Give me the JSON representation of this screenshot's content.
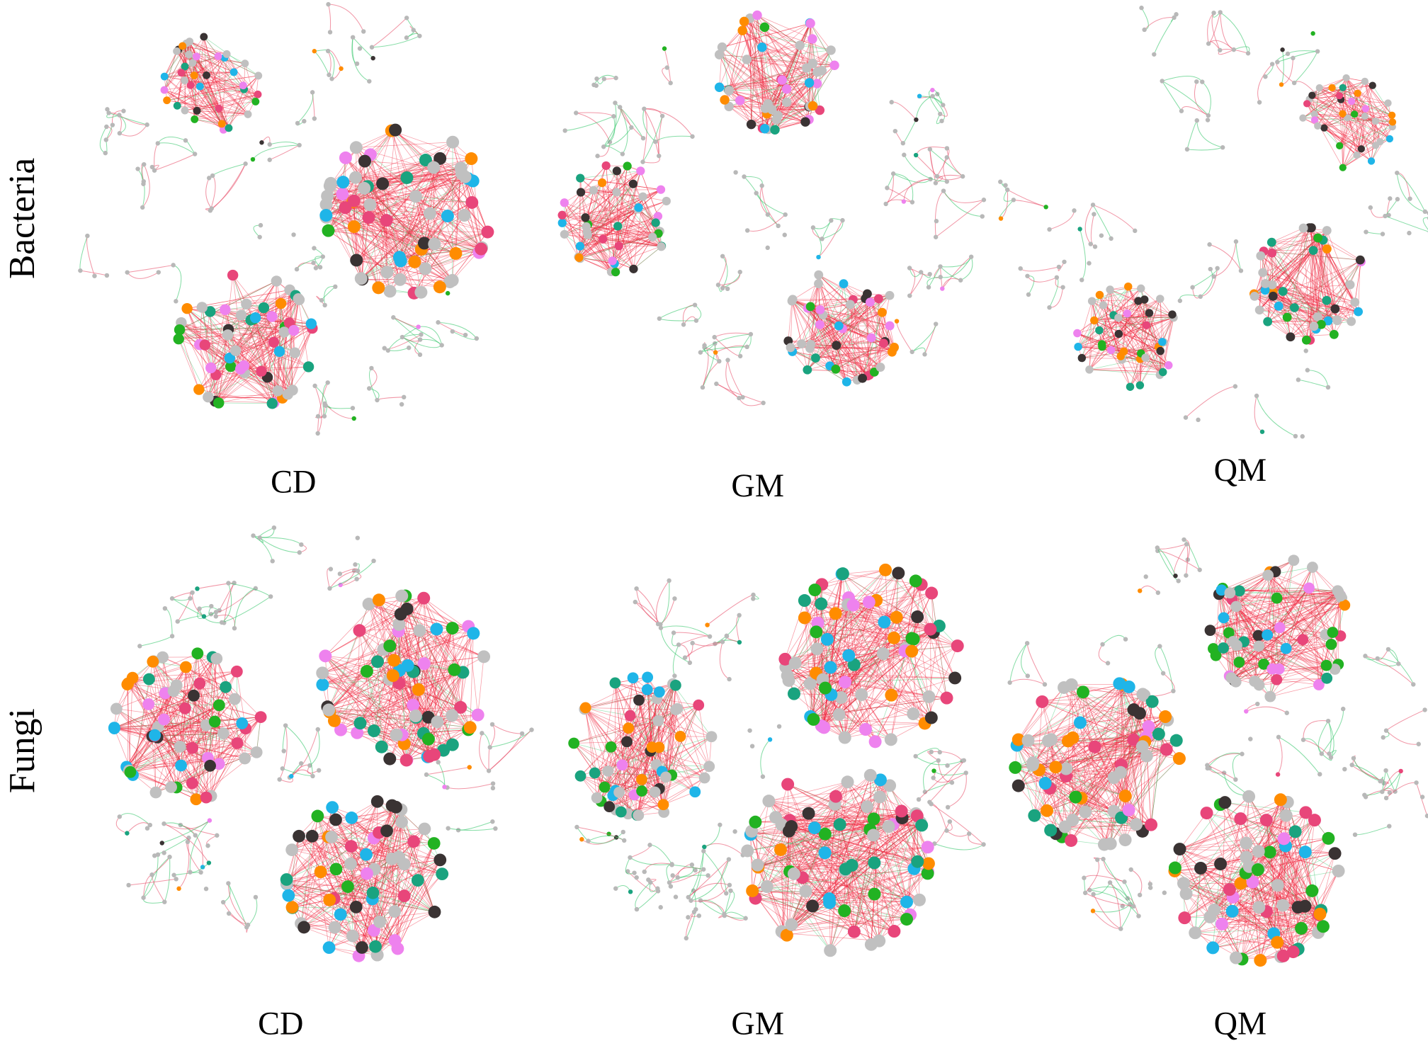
{
  "rows": [
    {
      "label": "Bacteria",
      "panels": [
        "CD",
        "GM",
        "QM"
      ]
    },
    {
      "label": "Fungi",
      "panels": [
        "CD",
        "GM",
        "QM"
      ]
    }
  ]
}
